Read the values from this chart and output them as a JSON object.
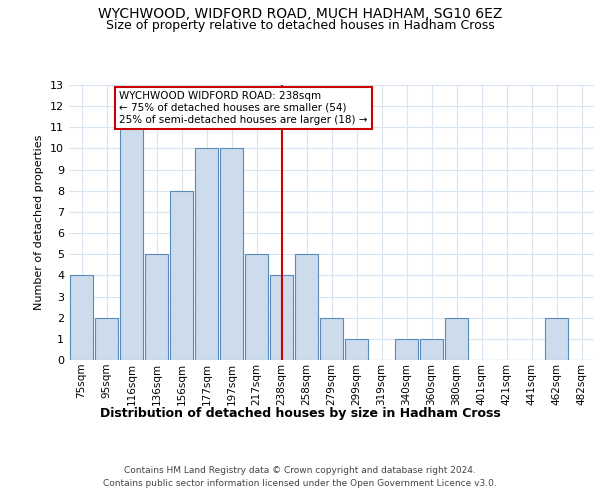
{
  "title1": "WYCHWOOD, WIDFORD ROAD, MUCH HADHAM, SG10 6EZ",
  "title2": "Size of property relative to detached houses in Hadham Cross",
  "xlabel": "Distribution of detached houses by size in Hadham Cross",
  "ylabel": "Number of detached properties",
  "categories": [
    "75sqm",
    "95sqm",
    "116sqm",
    "136sqm",
    "156sqm",
    "177sqm",
    "197sqm",
    "217sqm",
    "238sqm",
    "258sqm",
    "279sqm",
    "299sqm",
    "319sqm",
    "340sqm",
    "360sqm",
    "380sqm",
    "401sqm",
    "421sqm",
    "441sqm",
    "462sqm",
    "482sqm"
  ],
  "values": [
    4,
    2,
    11,
    5,
    8,
    10,
    10,
    5,
    4,
    5,
    2,
    1,
    0,
    1,
    1,
    2,
    0,
    0,
    0,
    2,
    0
  ],
  "highlight_index": 8,
  "highlight_label": "WYCHWOOD WIDFORD ROAD: 238sqm",
  "highlight_line1": "← 75% of detached houses are smaller (54)",
  "highlight_line2": "25% of semi-detached houses are larger (18) →",
  "bar_color": "#ccdcec",
  "bar_edge_color": "#5a8ab8",
  "highlight_line_color": "#cc0000",
  "ylim": [
    0,
    13
  ],
  "yticks": [
    0,
    1,
    2,
    3,
    4,
    5,
    6,
    7,
    8,
    9,
    10,
    11,
    12,
    13
  ],
  "background_color": "#ffffff",
  "grid_color": "#d8e4f0",
  "footnote1": "Contains HM Land Registry data © Crown copyright and database right 2024.",
  "footnote2": "Contains public sector information licensed under the Open Government Licence v3.0."
}
